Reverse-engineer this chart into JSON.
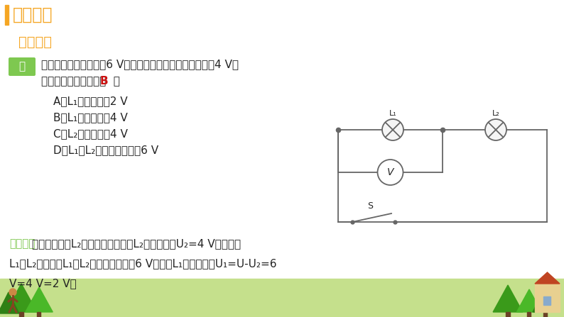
{
  "bg_color": "#ffffff",
  "title_bar_color": "#f5a623",
  "title_text": "新课讲解",
  "subtitle_text": "典例分析",
  "subtitle_color": "#f5a623",
  "example_box_color": "#7ec850",
  "example_box_text": "例",
  "q_line1": "如图所示，电源电压为6 V，闭合开关后，电压表的示数为4 V，",
  "q_line2_pre": "下列描述不正确的是（ ",
  "q_line2_B": "B",
  "q_line2_post": "  ）",
  "answer_B_color": "#cc1111",
  "options": [
    "A．L₁两端电压为2 V",
    "B．L₁两端电压为4 V",
    "C．L₂两端电压为4 V",
    "D．L₁和L₂两端电压之和为6 V"
  ],
  "analysis_bracket": "【解析】",
  "analysis_bracket_color": "#7ec850",
  "analysis_rest1": "因为电压表测L₂两端的电压，所以L₂两端的电压U₂=4 V，又因为",
  "analysis_line2": "L₁、L₂串联，则L₁和L₂两端电压之和为6 V，所以L₁两端的电压U₁=U-U₂=6",
  "analysis_line3": "V=4 V=2 V。",
  "bottom_bg_color": "#c5e08c",
  "font_color": "#222222",
  "wire_color": "#666666",
  "tree_color_dark": "#2e8b20",
  "tree_color_light": "#4aaa28"
}
